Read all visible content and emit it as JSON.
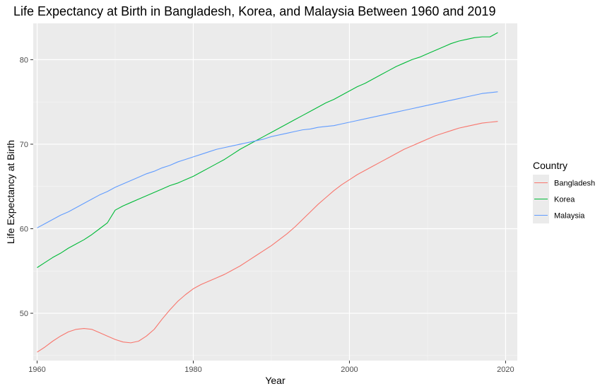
{
  "chart_data": {
    "type": "line",
    "title": "Life Expectancy at Birth in Bangladesh, Korea, and Malaysia Between 1960 and 2019",
    "xlabel": "Year",
    "ylabel": "Life Expectancy at Birth",
    "xlim": [
      1959.5,
      2021.5
    ],
    "ylim": [
      44.4,
      84.3
    ],
    "x_ticks": [
      1960,
      1980,
      2000,
      2020
    ],
    "y_ticks": [
      50,
      60,
      70,
      80
    ],
    "x_tick_labels": [
      "1960",
      "1980",
      "2000",
      "2020"
    ],
    "y_tick_labels": [
      "50",
      "60",
      "70",
      "80"
    ],
    "grid": true,
    "legend": {
      "title": "Country",
      "position": "right"
    },
    "series": [
      {
        "name": "Bangladesh",
        "color": "#F8766D",
        "x": [
          1960,
          1961,
          1962,
          1963,
          1964,
          1965,
          1966,
          1967,
          1968,
          1969,
          1970,
          1971,
          1972,
          1973,
          1974,
          1975,
          1976,
          1977,
          1978,
          1979,
          1980,
          1981,
          1982,
          1983,
          1984,
          1985,
          1986,
          1987,
          1988,
          1989,
          1990,
          1991,
          1992,
          1993,
          1994,
          1995,
          1996,
          1997,
          1998,
          1999,
          2000,
          2001,
          2002,
          2003,
          2004,
          2005,
          2006,
          2007,
          2008,
          2009,
          2010,
          2011,
          2012,
          2013,
          2014,
          2015,
          2016,
          2017,
          2018,
          2019
        ],
        "values": [
          45.4,
          46.0,
          46.7,
          47.3,
          47.8,
          48.1,
          48.2,
          48.1,
          47.7,
          47.3,
          46.9,
          46.6,
          46.5,
          46.7,
          47.3,
          48.1,
          49.3,
          50.4,
          51.4,
          52.2,
          52.9,
          53.4,
          53.8,
          54.2,
          54.6,
          55.1,
          55.6,
          56.2,
          56.8,
          57.4,
          58.0,
          58.7,
          59.4,
          60.2,
          61.1,
          62.0,
          62.9,
          63.7,
          64.5,
          65.2,
          65.8,
          66.4,
          66.9,
          67.4,
          67.9,
          68.4,
          68.9,
          69.4,
          69.8,
          70.2,
          70.6,
          71.0,
          71.3,
          71.6,
          71.9,
          72.1,
          72.3,
          72.5,
          72.6,
          72.7
        ]
      },
      {
        "name": "Korea",
        "color": "#00BA38",
        "x": [
          1960,
          1961,
          1962,
          1963,
          1964,
          1965,
          1966,
          1967,
          1968,
          1969,
          1970,
          1971,
          1972,
          1973,
          1974,
          1975,
          1976,
          1977,
          1978,
          1979,
          1980,
          1981,
          1982,
          1983,
          1984,
          1985,
          1986,
          1987,
          1988,
          1989,
          1990,
          1991,
          1992,
          1993,
          1994,
          1995,
          1996,
          1997,
          1998,
          1999,
          2000,
          2001,
          2002,
          2003,
          2004,
          2005,
          2006,
          2007,
          2008,
          2009,
          2010,
          2011,
          2012,
          2013,
          2014,
          2015,
          2016,
          2017,
          2018,
          2019
        ],
        "values": [
          55.4,
          56.0,
          56.6,
          57.1,
          57.7,
          58.2,
          58.7,
          59.3,
          60.0,
          60.7,
          62.2,
          62.7,
          63.1,
          63.5,
          63.9,
          64.3,
          64.7,
          65.1,
          65.4,
          65.8,
          66.2,
          66.7,
          67.2,
          67.7,
          68.2,
          68.8,
          69.4,
          69.9,
          70.4,
          70.9,
          71.4,
          71.9,
          72.4,
          72.9,
          73.4,
          73.9,
          74.4,
          74.9,
          75.3,
          75.8,
          76.3,
          76.8,
          77.2,
          77.7,
          78.2,
          78.7,
          79.2,
          79.6,
          80.0,
          80.3,
          80.7,
          81.1,
          81.5,
          81.9,
          82.2,
          82.4,
          82.6,
          82.7,
          82.7,
          83.2
        ]
      },
      {
        "name": "Malaysia",
        "color": "#619CFF",
        "x": [
          1960,
          1961,
          1962,
          1963,
          1964,
          1965,
          1966,
          1967,
          1968,
          1969,
          1970,
          1971,
          1972,
          1973,
          1974,
          1975,
          1976,
          1977,
          1978,
          1979,
          1980,
          1981,
          1982,
          1983,
          1984,
          1985,
          1986,
          1987,
          1988,
          1989,
          1990,
          1991,
          1992,
          1993,
          1994,
          1995,
          1996,
          1997,
          1998,
          1999,
          2000,
          2001,
          2002,
          2003,
          2004,
          2005,
          2006,
          2007,
          2008,
          2009,
          2010,
          2011,
          2012,
          2013,
          2014,
          2015,
          2016,
          2017,
          2018,
          2019
        ],
        "values": [
          60.1,
          60.6,
          61.1,
          61.6,
          62.0,
          62.5,
          63.0,
          63.5,
          64.0,
          64.4,
          64.9,
          65.3,
          65.7,
          66.1,
          66.5,
          66.8,
          67.2,
          67.5,
          67.9,
          68.2,
          68.5,
          68.8,
          69.1,
          69.4,
          69.6,
          69.8,
          70.0,
          70.2,
          70.4,
          70.6,
          70.9,
          71.1,
          71.3,
          71.5,
          71.7,
          71.8,
          72.0,
          72.1,
          72.2,
          72.4,
          72.6,
          72.8,
          73.0,
          73.2,
          73.4,
          73.6,
          73.8,
          74.0,
          74.2,
          74.4,
          74.6,
          74.8,
          75.0,
          75.2,
          75.4,
          75.6,
          75.8,
          76.0,
          76.1,
          76.2
        ]
      }
    ]
  }
}
